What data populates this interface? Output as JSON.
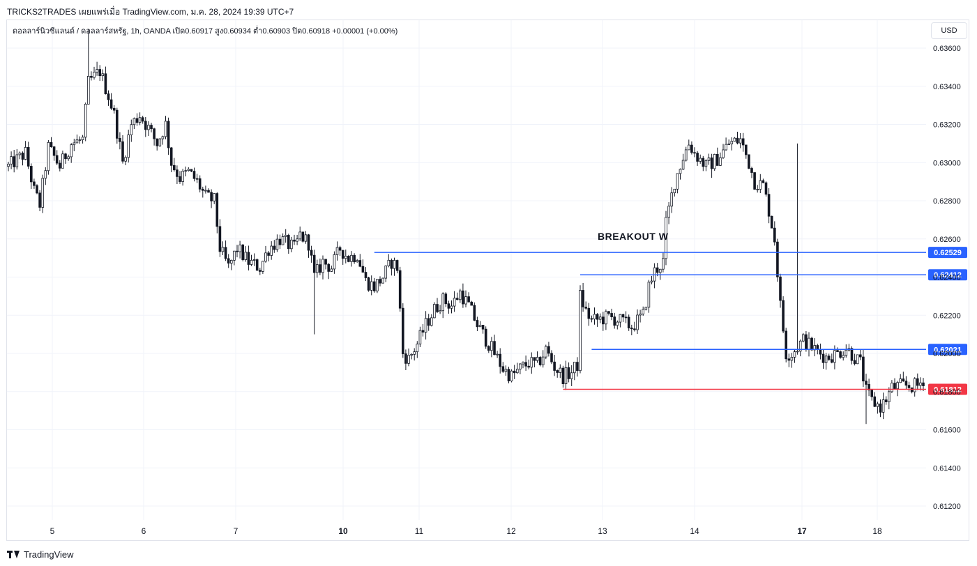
{
  "header": {
    "publisher_line": "TRICKS2TRADES เผยแพร่เมื่อ TradingView.com, ม.ค. 28, 2024 19:39 UTC+7"
  },
  "legend": {
    "symbol_line": "ดอลลาร์นิวซีแลนด์ / ดอลลาร์สหรัฐ, 1h, OANDA  เปิด0.60917  สูง0.60934  ต่ำ0.60903  ปิด0.60918  +0.00001 (+0.00%)"
  },
  "currency_button": "USD",
  "footer": {
    "brand": "TradingView"
  },
  "colors": {
    "candle": "#131722",
    "level_blue": "#2962ff",
    "level_red": "#f23645",
    "grid": "#f0f3fa"
  },
  "chart_data": {
    "type": "candlestick",
    "y_axis": {
      "min": 0.611,
      "max": 0.637,
      "ticks": [
        "0.63600",
        "0.63400",
        "0.63200",
        "0.63000",
        "0.62800",
        "0.62600",
        "0.62400",
        "0.62200",
        "0.62000",
        "0.61800",
        "0.61600",
        "0.61400",
        "0.61200"
      ]
    },
    "x_axis": {
      "ticks": [
        {
          "label": "5",
          "bold": false
        },
        {
          "label": "6",
          "bold": false
        },
        {
          "label": "7",
          "bold": false
        },
        {
          "label": "10",
          "bold": true
        },
        {
          "label": "11",
          "bold": false
        },
        {
          "label": "12",
          "bold": false
        },
        {
          "label": "13",
          "bold": false
        },
        {
          "label": "14",
          "bold": false
        },
        {
          "label": "17",
          "bold": true
        },
        {
          "label": "18",
          "bold": false
        }
      ]
    },
    "levels": [
      {
        "price": 0.62529,
        "label": "0.62529",
        "color": "blue",
        "from_index": 128
      },
      {
        "price": 0.62412,
        "label": "0.62412",
        "color": "blue",
        "from_index": 200
      },
      {
        "price": 0.62021,
        "label": "0.62021",
        "color": "blue",
        "from_index": 204
      },
      {
        "price": 0.61812,
        "label": "0.61812",
        "color": "red",
        "from_index": 194
      }
    ],
    "annotation": {
      "text": "BREAKOUT W"
    },
    "series": [
      {
        "name": "NZDUSD 1h",
        "anchors": [
          [
            0,
            0.6298
          ],
          [
            6,
            0.6305
          ],
          [
            9,
            0.6285
          ],
          [
            11,
            0.6278
          ],
          [
            14,
            0.6308
          ],
          [
            18,
            0.6298
          ],
          [
            22,
            0.631
          ],
          [
            26,
            0.6312
          ],
          [
            28,
            0.6342
          ],
          [
            32,
            0.6348
          ],
          [
            35,
            0.6335
          ],
          [
            37,
            0.6325
          ],
          [
            40,
            0.63
          ],
          [
            43,
            0.632
          ],
          [
            46,
            0.6325
          ],
          [
            49,
            0.6318
          ],
          [
            52,
            0.631
          ],
          [
            55,
            0.632
          ],
          [
            57,
            0.63
          ],
          [
            60,
            0.6292
          ],
          [
            63,
            0.6295
          ],
          [
            66,
            0.629
          ],
          [
            69,
            0.6282
          ],
          [
            72,
            0.628
          ],
          [
            74,
            0.6255
          ],
          [
            77,
            0.6245
          ],
          [
            80,
            0.6255
          ],
          [
            84,
            0.6248
          ],
          [
            88,
            0.6245
          ],
          [
            91,
            0.6255
          ],
          [
            95,
            0.626
          ],
          [
            100,
            0.6255
          ],
          [
            102,
            0.6262
          ],
          [
            105,
            0.6258
          ],
          [
            107,
            0.624
          ],
          [
            110,
            0.6248
          ],
          [
            113,
            0.6245
          ],
          [
            116,
            0.6255
          ],
          [
            119,
            0.625
          ],
          [
            122,
            0.6252
          ],
          [
            125,
            0.6238
          ],
          [
            128,
            0.6235
          ],
          [
            131,
            0.624
          ],
          [
            134,
            0.6248
          ],
          [
            136,
            0.6245
          ],
          [
            138,
            0.62
          ],
          [
            140,
            0.6197
          ],
          [
            143,
            0.6205
          ],
          [
            146,
            0.6215
          ],
          [
            149,
            0.6223
          ],
          [
            152,
            0.6228
          ],
          [
            155,
            0.6225
          ],
          [
            158,
            0.6232
          ],
          [
            161,
            0.6225
          ],
          [
            164,
            0.6215
          ],
          [
            166,
            0.621
          ],
          [
            170,
            0.62
          ],
          [
            173,
            0.6192
          ],
          [
            176,
            0.6188
          ],
          [
            179,
            0.6192
          ],
          [
            182,
            0.6195
          ],
          [
            185,
            0.6194
          ],
          [
            188,
            0.6202
          ],
          [
            191,
            0.6193
          ],
          [
            194,
            0.6188
          ],
          [
            197,
            0.619
          ],
          [
            199,
            0.6194
          ],
          [
            200,
            0.623
          ],
          [
            202,
            0.6222
          ],
          [
            204,
            0.6217
          ],
          [
            210,
            0.6219
          ],
          [
            214,
            0.6217
          ],
          [
            218,
            0.6214
          ],
          [
            222,
            0.622
          ],
          [
            224,
            0.6235
          ],
          [
            226,
            0.6243
          ],
          [
            229,
            0.6248
          ],
          [
            230,
            0.6268
          ],
          [
            233,
            0.629
          ],
          [
            236,
            0.6303
          ],
          [
            238,
            0.631
          ],
          [
            240,
            0.6305
          ],
          [
            244,
            0.6298
          ],
          [
            248,
            0.6302
          ],
          [
            252,
            0.631
          ],
          [
            256,
            0.6312
          ],
          [
            259,
            0.63
          ],
          [
            261,
            0.629
          ],
          [
            264,
            0.6288
          ],
          [
            266,
            0.6275
          ],
          [
            268,
            0.626
          ],
          [
            270,
            0.6225
          ],
          [
            272,
            0.62
          ],
          [
            274,
            0.62
          ],
          [
            278,
            0.6207
          ],
          [
            282,
            0.6202
          ],
          [
            284,
            0.62
          ],
          [
            286,
            0.6198
          ],
          [
            290,
            0.62
          ],
          [
            293,
            0.6203
          ],
          [
            296,
            0.6198
          ],
          [
            298,
            0.6195
          ],
          [
            300,
            0.618
          ],
          [
            302,
            0.6175
          ],
          [
            305,
            0.6172
          ],
          [
            307,
            0.6176
          ],
          [
            309,
            0.6182
          ],
          [
            312,
            0.6183
          ],
          [
            318,
            0.6183
          ],
          [
            322,
            0.619
          ],
          [
            324,
            0.6192
          ]
        ]
      }
    ]
  }
}
